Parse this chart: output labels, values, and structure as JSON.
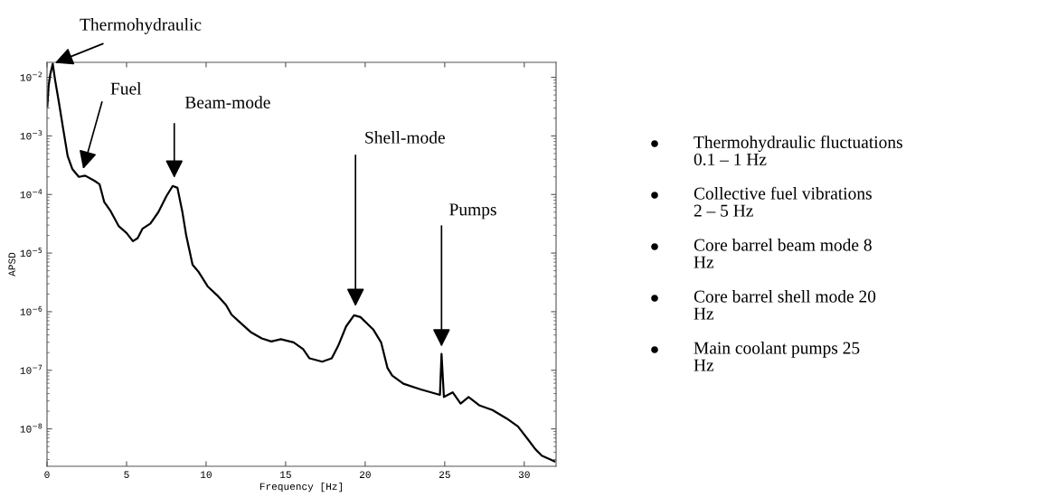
{
  "chart_data": {
    "type": "line",
    "xlabel": "Frequency [Hz]",
    "ylabel": "APSD",
    "log": "y",
    "grid": false,
    "legend": false,
    "marker": "none",
    "line_style": "solid",
    "xlim": [
      0,
      32
    ],
    "xticks": [
      0,
      5,
      10,
      15,
      20,
      25,
      30
    ],
    "ylim": [
      2.3e-09,
      0.018
    ],
    "yticks": [
      {
        "value": 1e-08,
        "label": "10$^{−8}$"
      },
      {
        "value": 1e-07,
        "label": "10$^{−7}$"
      },
      {
        "value": 1e-06,
        "label": "10$^{−6}$"
      },
      {
        "value": 1e-05,
        "label": "10$^{−5}$"
      },
      {
        "value": 0.0001,
        "label": "10$^{−4}$"
      },
      {
        "value": 0.001,
        "label": "10$^{−3}$"
      },
      {
        "value": 0.01,
        "label": "10$^{−2}$"
      }
    ],
    "x": [
      0.02,
      0.1,
      0.2,
      0.36,
      0.5,
      0.75,
      1.0,
      1.3,
      1.6,
      2.0,
      2.4,
      3.0,
      3.3,
      3.6,
      4.0,
      4.5,
      5.0,
      5.4,
      5.7,
      6.0,
      6.5,
      7.0,
      7.5,
      7.9,
      8.2,
      8.5,
      8.75,
      9.15,
      9.5,
      10.1,
      10.7,
      11.25,
      11.6,
      12.2,
      12.8,
      13.5,
      14.1,
      14.7,
      15.5,
      16.1,
      16.5,
      17.3,
      17.9,
      18.3,
      18.8,
      19.3,
      19.7,
      20.5,
      21.0,
      21.4,
      21.7,
      22.4,
      23.5,
      24.7,
      24.8,
      24.95,
      25.5,
      26.0,
      26.5,
      27.2,
      28.0,
      28.9,
      29.6,
      30.2,
      30.7,
      31.1,
      31.9
    ],
    "series": [
      {
        "color": "#000000",
        "values": [
          0.0032,
          0.0071,
          0.011,
          0.017,
          0.0093,
          0.0037,
          0.0014,
          0.00045,
          0.00027,
          0.0002,
          0.00021,
          0.00017,
          0.00015,
          7.4e-05,
          5.2e-05,
          2.9e-05,
          2.2e-05,
          1.6e-05,
          1.8e-05,
          2.6e-05,
          3.2e-05,
          5e-05,
          9.3e-05,
          0.00014,
          0.00013,
          5.2e-05,
          2e-05,
          6.3e-06,
          4.9e-06,
          2.7e-06,
          1.9e-06,
          1.3e-06,
          8.9e-07,
          6.3e-07,
          4.5e-07,
          3.5e-07,
          3.1e-07,
          3.4e-07,
          3e-07,
          2.3e-07,
          1.6e-07,
          1.4e-07,
          1.6e-07,
          2.6e-07,
          5.6e-07,
          8.7e-07,
          8.1e-07,
          5e-07,
          3e-07,
          1.1e-07,
          8.1e-08,
          5.9e-08,
          4.7e-08,
          3.8e-08,
          1.9e-07,
          3.5e-08,
          4.2e-08,
          2.7e-08,
          3.5e-08,
          2.5e-08,
          2.1e-08,
          1.5e-08,
          1.1e-08,
          6.8e-09,
          4.5e-09,
          3.5e-09,
          2.8e-09
        ]
      }
    ],
    "annotations": [
      {
        "text": "Thermohydraulic",
        "x": 0.36,
        "y": 0.017
      },
      {
        "text": "Pumps",
        "x": 24.8,
        "y": 2.3e-07
      },
      "Fuel",
      "Beam-mode",
      "Shell-mode",
      "Thermohydraulic fluctuations\n0.1 – 1 Hz",
      "Collective fuel vibrations\n2 – 5 Hz",
      "Core barrel beam mode 8\nHz",
      "Core barrel shell mode 20\nHz",
      "Main coolant pumps 25\nHz"
    ]
  }
}
